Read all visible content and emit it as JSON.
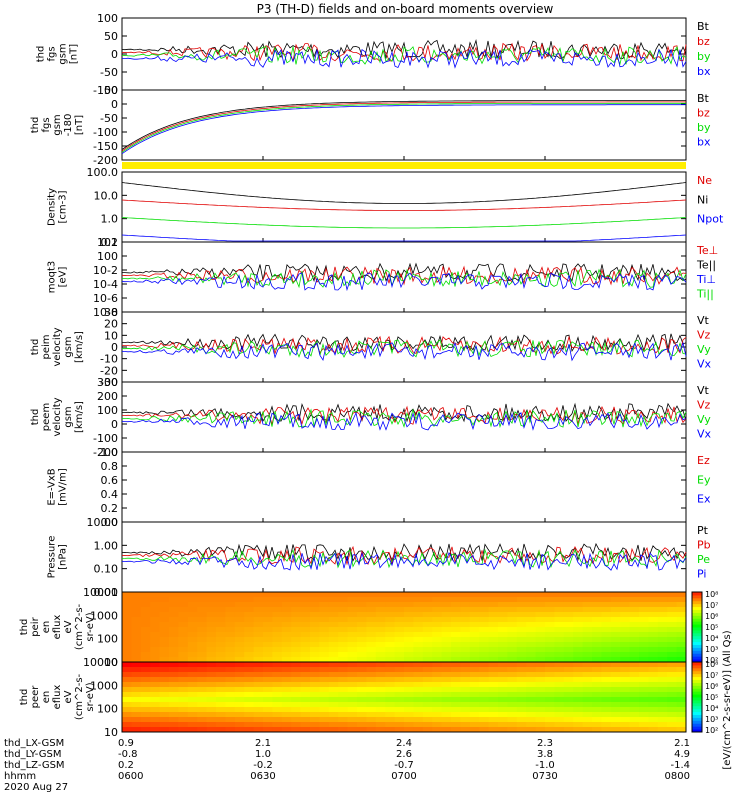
{
  "title": "P3 (TH-D) fields and on-board moments overview",
  "colors": {
    "black": "#000000",
    "red": "#e00000",
    "green": "#00dd00",
    "blue": "#0000ff",
    "yellow": "#ffee00"
  },
  "chart_data": [
    {
      "type": "line",
      "ylabel": [
        "thd",
        "fgs",
        "gsm",
        "[nT]"
      ],
      "ylim": [
        -100,
        100
      ],
      "yticks": [
        "-100",
        "-50",
        "0",
        "50",
        "100"
      ],
      "legend": [
        {
          "text": "Bt",
          "color": "black"
        },
        {
          "text": "bz",
          "color": "red"
        },
        {
          "text": "by",
          "color": "green"
        },
        {
          "text": "bx",
          "color": "blue"
        }
      ]
    },
    {
      "type": "line",
      "ylabel": [
        "thd",
        "fgs",
        "gsm",
        "-180",
        "[nT]"
      ],
      "ylim": [
        -220,
        50
      ],
      "yticks": [
        "-200",
        "-150",
        "-100",
        "-50",
        "0",
        "50"
      ],
      "legend": [
        {
          "text": "Bt",
          "color": "black"
        },
        {
          "text": "bz",
          "color": "red"
        },
        {
          "text": "by",
          "color": "green"
        },
        {
          "text": "bx",
          "color": "blue"
        }
      ]
    },
    {
      "type": "line",
      "ylabel": [
        "Density",
        "[cm-3]"
      ],
      "yscale": "log",
      "ylim": [
        0.1,
        200
      ],
      "yticks": [
        "0.1",
        "1.0",
        "10.0",
        "100.0"
      ],
      "legend": [
        {
          "text": "Ne",
          "color": "red"
        },
        {
          "text": "Ni",
          "color": "black"
        },
        {
          "text": "Npot",
          "color": "blue"
        }
      ]
    },
    {
      "type": "line",
      "ylabel": [
        "moqt3",
        "[eV]"
      ],
      "yscale": "log",
      "yticks": [
        "10-8",
        "10-6",
        "10-4",
        "10-2",
        "100",
        "102"
      ],
      "legend": [
        {
          "text": "Te⊥",
          "color": "red"
        },
        {
          "text": "Te||",
          "color": "black"
        },
        {
          "text": "Ti⊥",
          "color": "blue"
        },
        {
          "text": "Ti||",
          "color": "green"
        }
      ]
    },
    {
      "type": "line",
      "ylabel": [
        "thd",
        "peim",
        "velocity",
        "gsm",
        "[km/s]"
      ],
      "ylim": [
        -30,
        30
      ],
      "yticks": [
        "-30",
        "-20",
        "-10",
        "0",
        "10",
        "20",
        "30"
      ],
      "legend": [
        {
          "text": "Vt",
          "color": "black"
        },
        {
          "text": "Vz",
          "color": "red"
        },
        {
          "text": "Vy",
          "color": "green"
        },
        {
          "text": "Vx",
          "color": "blue"
        }
      ]
    },
    {
      "type": "line",
      "ylabel": [
        "thd",
        "peem",
        "velocity",
        "gsm",
        "[km/s]"
      ],
      "ylim": [
        -200,
        300
      ],
      "yticks": [
        "-200",
        "-100",
        "0",
        "100",
        "200",
        "300"
      ],
      "legend": [
        {
          "text": "Vt",
          "color": "black"
        },
        {
          "text": "Vz",
          "color": "red"
        },
        {
          "text": "Vy",
          "color": "green"
        },
        {
          "text": "Vx",
          "color": "blue"
        }
      ]
    },
    {
      "type": "line",
      "ylabel": [
        "E=-VxB",
        "[mV/m]"
      ],
      "ylim": [
        0,
        1
      ],
      "yticks": [
        "0.0",
        "0.2",
        "0.4",
        "0.6",
        "0.8",
        "1.0"
      ],
      "legend": [
        {
          "text": "Ez",
          "color": "red"
        },
        {
          "text": "Ey",
          "color": "green"
        },
        {
          "text": "Ex",
          "color": "blue"
        }
      ]
    },
    {
      "type": "line",
      "ylabel": [
        "Pressure",
        "[nPa]"
      ],
      "yscale": "log",
      "ylim": [
        0.005,
        20
      ],
      "yticks": [
        "0.01",
        "0.10",
        "1.00",
        "10.00"
      ],
      "legend": [
        {
          "text": "Pt",
          "color": "black"
        },
        {
          "text": "Pb",
          "color": "red"
        },
        {
          "text": "Pe",
          "color": "green"
        },
        {
          "text": "Pi",
          "color": "blue"
        }
      ]
    },
    {
      "type": "heatmap",
      "ylabel": [
        "thd",
        "peir",
        "en",
        "eflux",
        "eV",
        "(cm^2-s-",
        "sr-eV)"
      ],
      "yscale": "log",
      "ylim": [
        6,
        30000
      ],
      "yticks": [
        "10",
        "100",
        "1000",
        "10000"
      ]
    },
    {
      "type": "heatmap",
      "ylabel": [
        "thd",
        "peer",
        "en",
        "eflux",
        "eV",
        "(cm^2-s-",
        "sr-eV)"
      ],
      "yscale": "log",
      "ylim": [
        6,
        30000
      ],
      "yticks": [
        "10",
        "100",
        "1000",
        "10000"
      ]
    }
  ],
  "colorbar": {
    "label": "[eV/(cm^2-s-sr-eV)] (All Qs)",
    "upper_ticks": [
      "10²",
      "10³",
      "10⁴",
      "10⁵",
      "10⁶",
      "10⁷",
      "10⁸"
    ],
    "lower_ticks": [
      "10²",
      "10³",
      "10⁴",
      "10⁵",
      "10⁶",
      "10⁷",
      "10⁸"
    ]
  },
  "xaxis": {
    "ticks": [
      {
        "lx": "0.9",
        "ly": "-0.8",
        "lz": "0.2",
        "t": "0600"
      },
      {
        "lx": "2.1",
        "ly": "1.0",
        "lz": "-0.2",
        "t": "0630"
      },
      {
        "lx": "2.4",
        "ly": "2.6",
        "lz": "-0.7",
        "t": "0700"
      },
      {
        "lx": "2.3",
        "ly": "3.8",
        "lz": "-1.0",
        "t": "0730"
      },
      {
        "lx": "2.1",
        "ly": "4.9",
        "lz": "-1.4",
        "t": "0800"
      }
    ],
    "rows": [
      "thd_LX-GSM",
      "thd_LY-GSM",
      "thd_LZ-GSM",
      "hhmm"
    ],
    "date": "2020 Aug 27"
  }
}
